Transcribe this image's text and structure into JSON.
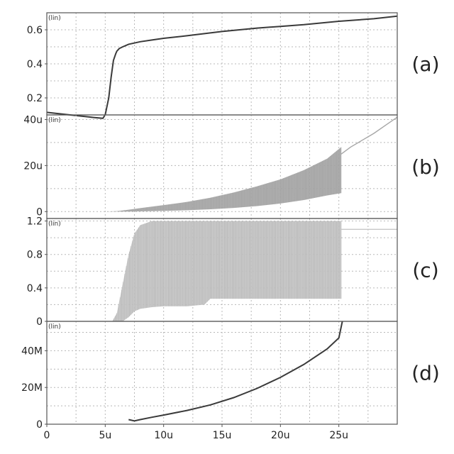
{
  "chart_data": [
    {
      "type": "line",
      "panel_label": "(a)",
      "scale_tag": "(lin)",
      "xlim": [
        0,
        30
      ],
      "ylim": [
        0.1,
        0.7
      ],
      "yticks": [
        0.2,
        0.4,
        0.6
      ],
      "ytick_labels": [
        "0.2",
        "0.4",
        "0.6"
      ],
      "color": "#3a3a3a",
      "grid": true,
      "series": [
        {
          "x": [
            0,
            2,
            4,
            4.8,
            5.0,
            5.3,
            5.5,
            5.7,
            5.9,
            6.0,
            6.2,
            6.5,
            7,
            8,
            9,
            10,
            12,
            15,
            18,
            20,
            22,
            25,
            28,
            30
          ],
          "values": [
            0.115,
            0.1,
            0.085,
            0.08,
            0.1,
            0.2,
            0.32,
            0.42,
            0.46,
            0.475,
            0.49,
            0.5,
            0.515,
            0.53,
            0.54,
            0.55,
            0.565,
            0.59,
            0.61,
            0.62,
            0.63,
            0.65,
            0.665,
            0.68
          ]
        }
      ]
    },
    {
      "type": "area",
      "panel_label": "(b)",
      "scale_tag": "(lin)",
      "xlim": [
        0,
        30
      ],
      "ylim": [
        -3,
        42
      ],
      "yticks": [
        0,
        20,
        40
      ],
      "ytick_labels": [
        "0",
        "20u",
        "40u"
      ],
      "color": "#a6a6a6",
      "grid": true,
      "series": [
        {
          "x": [
            0,
            5,
            6,
            7,
            8,
            10,
            12,
            14,
            16,
            18,
            20,
            22,
            24,
            25.2
          ],
          "upper": [
            0,
            0,
            0.2,
            0.8,
            1.5,
            2.8,
            4.2,
            6.0,
            8.3,
            11,
            14,
            18,
            23,
            28
          ],
          "lower": [
            0,
            0,
            0,
            0,
            0.1,
            0.3,
            0.6,
            1.0,
            1.6,
            2.4,
            3.5,
            5.0,
            7.0,
            8.0
          ]
        },
        {
          "x": [
            25.2,
            26,
            27,
            28,
            29,
            30
          ],
          "values": [
            25,
            28,
            31,
            34,
            37.5,
            41
          ]
        }
      ]
    },
    {
      "type": "area",
      "panel_label": "(c)",
      "scale_tag": "(lin)",
      "xlim": [
        0,
        30
      ],
      "ylim": [
        0,
        1.23
      ],
      "yticks": [
        0,
        0.4,
        0.8,
        1.2
      ],
      "ytick_labels": [
        "0",
        "0.4",
        "0.8",
        "1.2"
      ],
      "color": "#c8c8c8",
      "grid": true,
      "series": [
        {
          "x": [
            5.6,
            6.0,
            6.5,
            7.0,
            7.5,
            8.0,
            9.0,
            10,
            12,
            13.5,
            14,
            20,
            25.2
          ],
          "upper": [
            0,
            0.1,
            0.45,
            0.8,
            1.05,
            1.15,
            1.2,
            1.2,
            1.2,
            1.2,
            1.2,
            1.2,
            1.2
          ],
          "lower": [
            0,
            0,
            0,
            0.05,
            0.12,
            0.15,
            0.17,
            0.18,
            0.18,
            0.2,
            0.27,
            0.27,
            0.27
          ]
        },
        {
          "x": [
            25.2,
            30
          ],
          "values": [
            1.1,
            1.1
          ]
        }
      ]
    },
    {
      "type": "line",
      "panel_label": "(d)",
      "scale_tag": "(lin)",
      "xlim": [
        0,
        30
      ],
      "ylim": [
        0,
        56
      ],
      "yticks": [
        0,
        20,
        40
      ],
      "ytick_labels": [
        "0",
        "20M",
        "40M"
      ],
      "xticks": [
        0,
        5,
        10,
        15,
        20,
        25
      ],
      "xtick_labels": [
        "0",
        "5u",
        "10u",
        "15u",
        "20u",
        "25u"
      ],
      "color": "#3a3a3a",
      "grid": true,
      "series": [
        {
          "x": [
            7,
            7.5,
            8,
            9,
            10,
            12,
            14,
            16,
            18,
            20,
            22,
            24,
            25,
            25.3
          ],
          "values": [
            2.5,
            1.8,
            2.5,
            3.8,
            5,
            7.5,
            10.5,
            14.5,
            19.5,
            25.5,
            32.5,
            41,
            47,
            56
          ]
        }
      ]
    }
  ]
}
